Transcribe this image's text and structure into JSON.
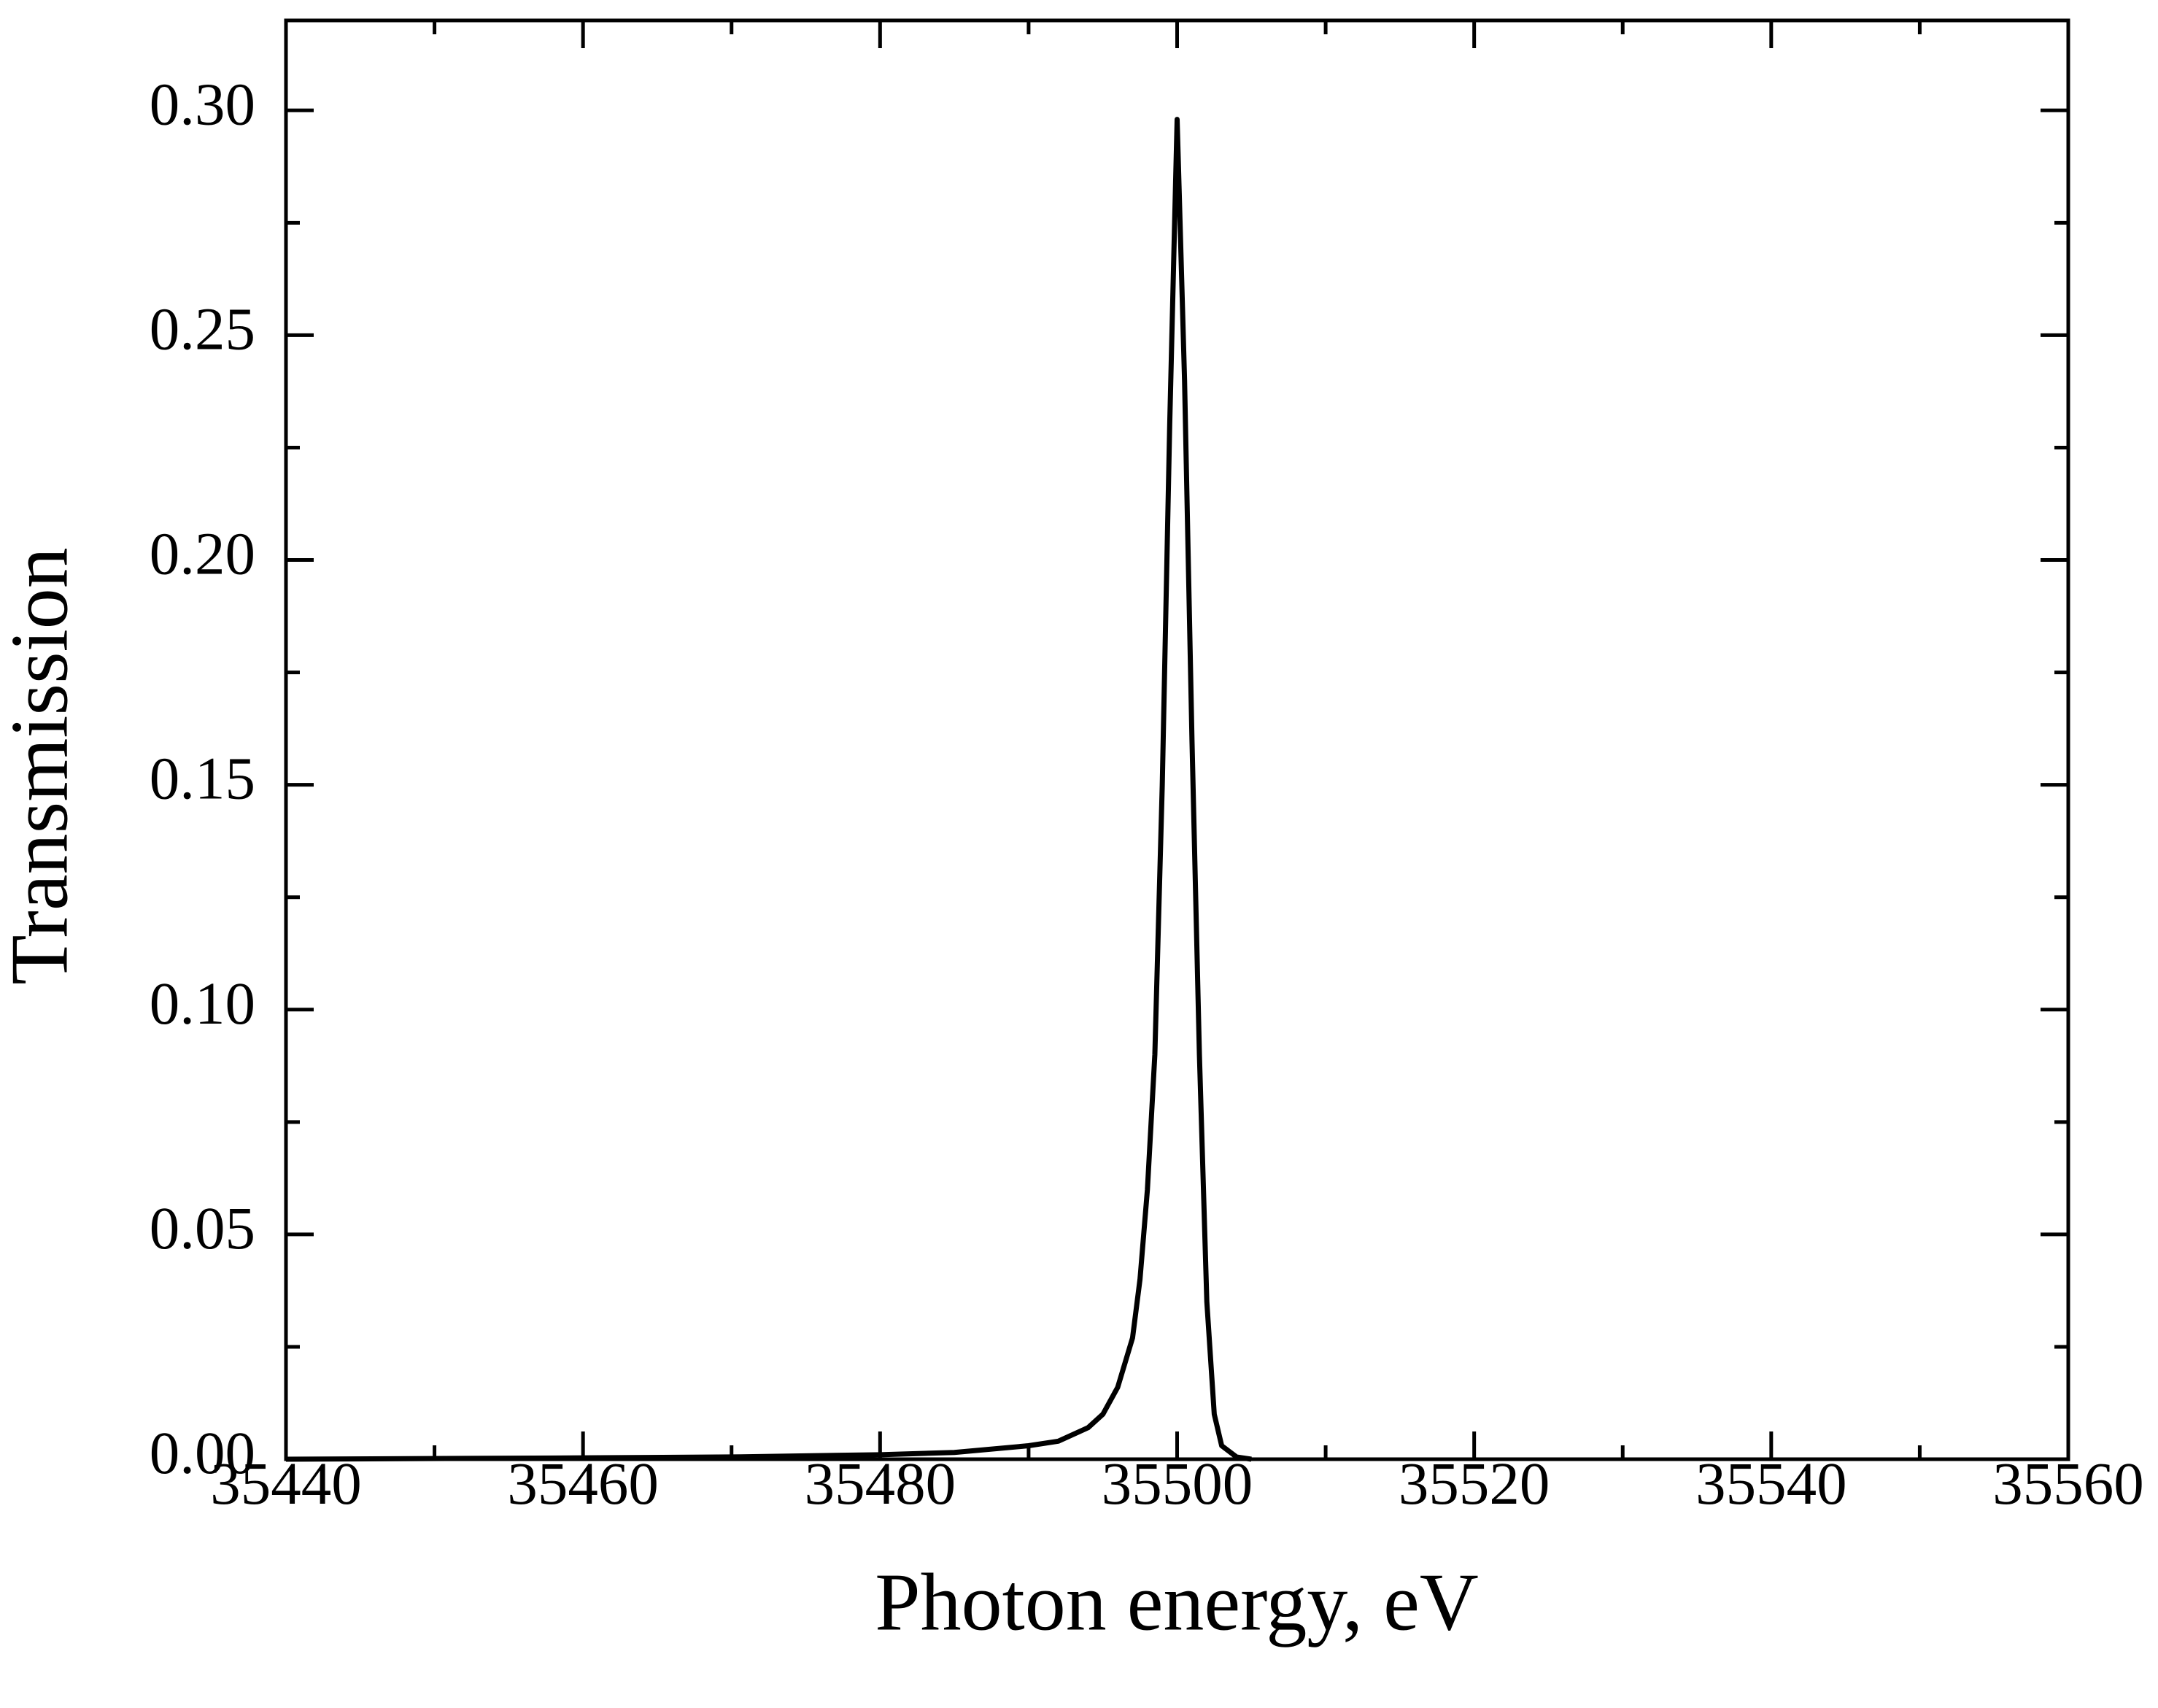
{
  "chart_data": {
    "type": "line",
    "xlabel": "Photon energy, eV",
    "ylabel": "Transmission",
    "x": [
      35440,
      35460,
      35470,
      35480,
      35485,
      35490,
      35492,
      35494,
      35495,
      35496,
      35497,
      35497.5,
      35498,
      35498.5,
      35499,
      35499.5,
      35500,
      35500.5,
      35501,
      35501.5,
      35502,
      35502.5,
      35503,
      35504,
      35505
    ],
    "series": [
      {
        "color": "#000000",
        "values": [
          0,
          0.0003,
          0.0005,
          0.001,
          0.0015,
          0.003,
          0.004,
          0.007,
          0.01,
          0.016,
          0.027,
          0.04,
          0.06,
          0.09,
          0.15,
          0.23,
          0.298,
          0.24,
          0.16,
          0.09,
          0.035,
          0.01,
          0.003,
          0.0005,
          0
        ]
      }
    ],
    "xlim": [
      35440,
      35560
    ],
    "xticks": [
      35440,
      35460,
      35480,
      35500,
      35520,
      35540,
      35560
    ],
    "xminorticks": [
      35450,
      35470,
      35490,
      35510,
      35530,
      35550
    ],
    "ylim": [
      0,
      0.32
    ],
    "yticks": [
      {
        "value": 0,
        "label": "0.00"
      },
      {
        "value": 0.05,
        "label": "0.05"
      },
      {
        "value": 0.1,
        "label": "0.10"
      },
      {
        "value": 0.15,
        "label": "0.15"
      },
      {
        "value": 0.2,
        "label": "0.20"
      },
      {
        "value": 0.25,
        "label": "0.25"
      },
      {
        "value": 0.3,
        "label": "0.30"
      }
    ],
    "yminorticks": [
      0.025,
      0.075,
      0.125,
      0.175,
      0.225,
      0.275
    ],
    "ticks_mirrored": true,
    "grid": false
  }
}
